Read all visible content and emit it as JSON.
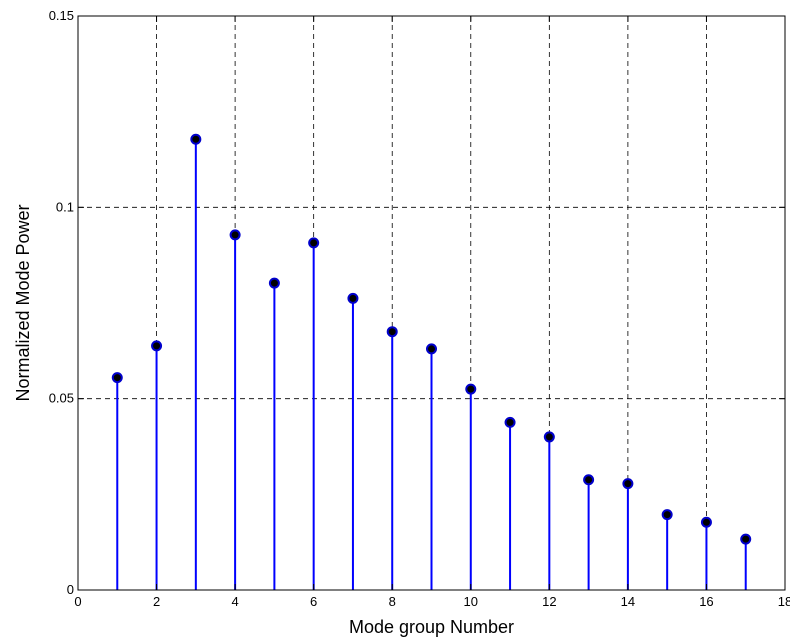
{
  "chart_data": {
    "type": "stem",
    "title": "",
    "xlabel": "Mode group Number",
    "ylabel": "Normalized Mode Power",
    "xlim": [
      0,
      18
    ],
    "ylim": [
      0,
      0.15
    ],
    "xticks": [
      0,
      2,
      4,
      6,
      8,
      10,
      12,
      14,
      16,
      18
    ],
    "xtick_labels": [
      "0",
      "2",
      "4",
      "6",
      "8",
      "10",
      "12",
      "14",
      "16",
      "18"
    ],
    "yticks": [
      0,
      0.05,
      0.1,
      0.15
    ],
    "ytick_labels": [
      "0",
      "0.05",
      "0.1",
      "0.15"
    ],
    "grid": true,
    "grid_style": "dashed",
    "x": [
      1,
      2,
      3,
      4,
      5,
      6,
      7,
      8,
      9,
      10,
      11,
      12,
      13,
      14,
      15,
      16,
      17
    ],
    "values": [
      0.0555,
      0.0638,
      0.1178,
      0.0928,
      0.0802,
      0.0907,
      0.0762,
      0.0675,
      0.063,
      0.0525,
      0.0438,
      0.04,
      0.0288,
      0.0278,
      0.0197,
      0.0177,
      0.0133
    ],
    "stem_color": "#0000ff",
    "marker_edge_color": "#0000cc",
    "marker_fill_color": "#000000"
  }
}
